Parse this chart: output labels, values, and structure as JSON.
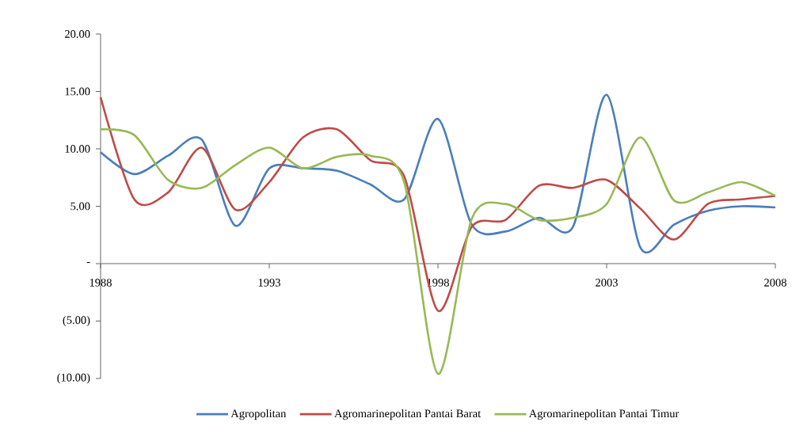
{
  "chart_data": {
    "type": "line",
    "x": [
      1988,
      1989,
      1990,
      1991,
      1992,
      1993,
      1994,
      1995,
      1996,
      1997,
      1998,
      1999,
      2000,
      2001,
      2002,
      2003,
      2004,
      2005,
      2006,
      2007,
      2008
    ],
    "series": [
      {
        "name": "Agropolitan",
        "color": "#4a7ebb",
        "values": [
          9.7,
          7.8,
          9.4,
          10.8,
          3.3,
          8.3,
          8.3,
          8.1,
          6.9,
          5.6,
          12.6,
          3.4,
          2.8,
          4.0,
          3.2,
          14.7,
          1.4,
          3.4,
          4.6,
          5.0,
          4.9
        ]
      },
      {
        "name": "Agromarinepolitan Pantai Barat",
        "color": "#be4b48",
        "values": [
          14.5,
          5.6,
          6.2,
          10.1,
          4.7,
          7.1,
          11.0,
          11.7,
          9.0,
          7.6,
          -4.1,
          3.2,
          3.8,
          6.8,
          6.6,
          7.3,
          4.8,
          2.1,
          5.2,
          5.6,
          5.9
        ]
      },
      {
        "name": "Agromarinepolitan Pantai Timur",
        "color": "#98b954",
        "values": [
          11.7,
          11.2,
          7.3,
          6.6,
          8.6,
          10.1,
          8.3,
          9.3,
          9.4,
          7.1,
          -9.6,
          3.9,
          5.2,
          3.8,
          4.0,
          5.2,
          11.0,
          5.5,
          6.2,
          7.1,
          5.9
        ]
      }
    ],
    "xlim": [
      1988,
      2008
    ],
    "xticks": [
      1988,
      1993,
      1998,
      2003,
      2008
    ],
    "ylim": [
      -10,
      20
    ],
    "yticks": [
      {
        "value": -10,
        "label": "(10.00)"
      },
      {
        "value": -5,
        "label": "(5.00)"
      },
      {
        "value": 0,
        "label": "-"
      },
      {
        "value": 5,
        "label": "5.00"
      },
      {
        "value": 10,
        "label": "10.00"
      },
      {
        "value": 15,
        "label": "15.00"
      },
      {
        "value": 20,
        "label": "20.00"
      }
    ],
    "legend": "bottom",
    "marker": "none",
    "line_style": "solid",
    "grid": false
  }
}
